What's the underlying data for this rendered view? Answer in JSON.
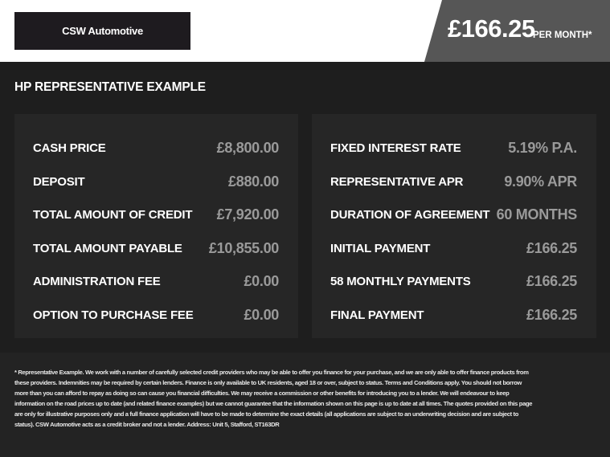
{
  "header": {
    "dealer": "CSW Automotive",
    "monthly_price": "£166.25",
    "per_month_label": "PER MONTH*"
  },
  "section_title": "HP REPRESENTATIVE EXAMPLE",
  "left_rows": [
    {
      "label": "CASH PRICE",
      "value": "£8,800.00"
    },
    {
      "label": "DEPOSIT",
      "value": "£880.00"
    },
    {
      "label": "TOTAL AMOUNT OF CREDIT",
      "value": "£7,920.00"
    },
    {
      "label": "TOTAL AMOUNT PAYABLE",
      "value": "£10,855.00"
    },
    {
      "label": "ADMINISTRATION FEE",
      "value": "£0.00"
    },
    {
      "label": "OPTION TO PURCHASE FEE",
      "value": "£0.00"
    }
  ],
  "right_rows": [
    {
      "label": "FIXED INTEREST RATE",
      "value": "5.19% P.A."
    },
    {
      "label": "REPRESENTATIVE APR",
      "value": "9.90% APR"
    },
    {
      "label": "DURATION OF AGREEMENT",
      "value": "60 MONTHS"
    },
    {
      "label": "INITIAL PAYMENT",
      "value": "£166.25"
    },
    {
      "label": "58 MONTHLY PAYMENTS",
      "value": "£166.25"
    },
    {
      "label": "FINAL PAYMENT",
      "value": "£166.25"
    }
  ],
  "disclaimer": "* Representative Example. We work with a number of carefully selected credit providers who may be able to offer you finance for your purchase, and we are only able to offer finance products from these providers. Indemnities may be required by certain lenders. Finance is only available to UK residents, aged 18 or over, subject to status. Terms and Conditions apply. You should not borrow more than you can afford to repay as doing so can cause you financial difficulties. We may receive a commission or other benefits for introducing you to a lender. We will endeavour to keep information on the road prices up to date (and related finance examples) but we cannot guarantee that the information shown on this page is up to date at all times. The quotes provided on this page are only for illustrative purposes only and a full finance application will have to be made to determine the exact details (all applications are subject to an underwriting decision and are subject to status). CSW Automotive acts as a credit broker and not a lender. Address: Unit 5, Stafford, ST163DR"
}
